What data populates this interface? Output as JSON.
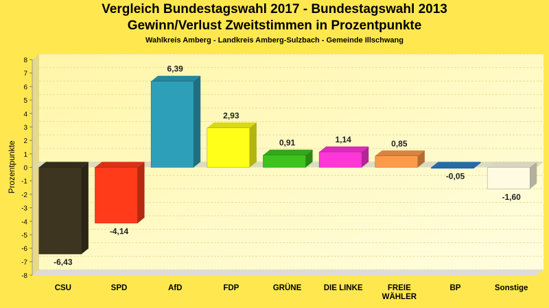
{
  "header": {
    "title_line1": "Vergleich Bundestagswahl 2017 - Bundestagswahl 2013",
    "title_line2": "Gewinn/Verlust Zweitstimmen in Prozentpunkte",
    "subtitle": "Wahlkreis Amberg - Landkreis Amberg-Sulzbach - Gemeinde Illschwang"
  },
  "chart_data": {
    "type": "bar",
    "title": "Vergleich Bundestagswahl 2017 - Bundestagswahl 2013 / Gewinn/Verlust Zweitstimmen in Prozentpunkte",
    "subtitle": "Wahlkreis Amberg - Landkreis Amberg-Sulzbach - Gemeinde Illschwang",
    "xlabel": "",
    "ylabel": "Prozentpunkte",
    "ylim": [
      -8,
      8
    ],
    "yticks": [
      8,
      7,
      6,
      5,
      4,
      3,
      2,
      1,
      0,
      -1,
      -2,
      -3,
      -4,
      -5,
      -6,
      -7,
      -8
    ],
    "grid": true,
    "categories": [
      "CSU",
      "SPD",
      "AfD",
      "FDP",
      "GRÜNE",
      "DIE LINKE",
      "FREIE\nWÄHLER",
      "BP",
      "Sonstige"
    ],
    "values": [
      -6.43,
      -4.14,
      6.39,
      2.93,
      0.91,
      1.14,
      0.85,
      -0.05,
      -1.6
    ],
    "value_labels": [
      "-6,43",
      "-4,14",
      "6,39",
      "2,93",
      "0,91",
      "1,14",
      "0,85",
      "-0,05",
      "-1,60"
    ],
    "colors": [
      "#3d3520",
      "#ff3b1a",
      "#2e9fb8",
      "#ffff1a",
      "#3cc41e",
      "#ff36d8",
      "#ff9a4a",
      "#2a7fc8",
      "#fffbe2"
    ]
  }
}
